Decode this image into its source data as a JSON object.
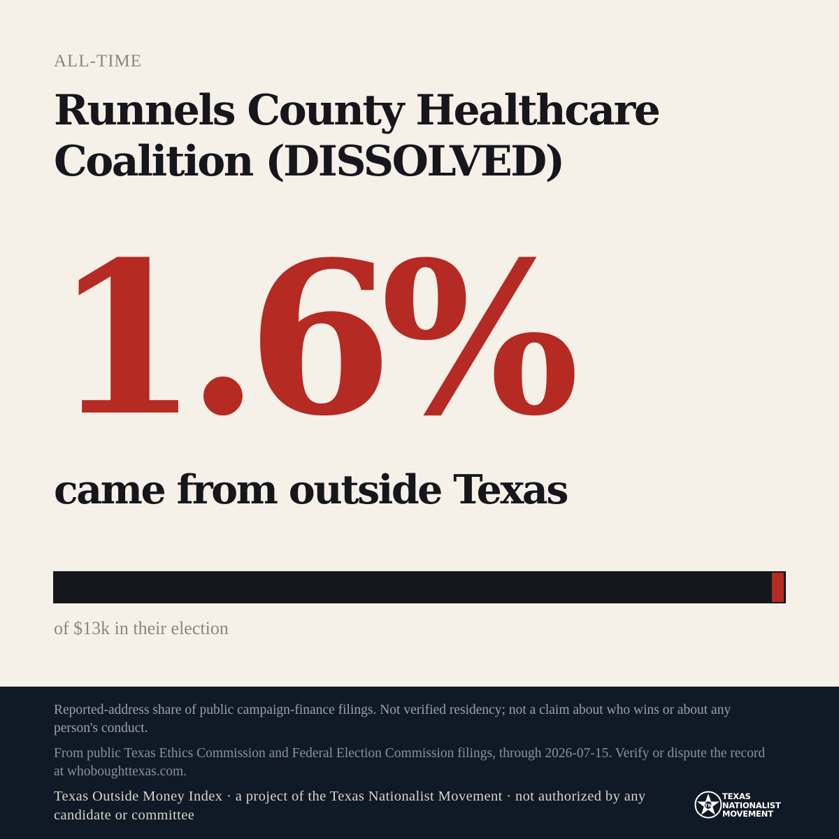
{
  "header": {
    "eyebrow": "ALL-TIME",
    "title": "Runnels County Healthcare Coalition (DISSOLVED)"
  },
  "stat": {
    "percent_display": "1.6%",
    "percent_value": 1.6,
    "caption": "came from outside Texas"
  },
  "bar": {
    "share_outside": 0.016,
    "colors": {
      "base": "#15171c",
      "fill": "#b52a22"
    },
    "subtitle": "of $13k in their election"
  },
  "footer": {
    "note1": "Reported-address share of public campaign-finance filings. Not verified residency; not a claim about who wins or about any person's conduct.",
    "note2": "From public Texas Ethics Commission and Federal Election Commission filings, through 2026-07-15. Verify or dispute the record at whoboughttexas.com.",
    "credit": "Texas Outside Money Index · a project of the Texas Nationalist Movement · not authorized by any candidate or committee",
    "logo": {
      "icon": "star-seal-icon",
      "line1": "TEXAS",
      "line2": "NATIONALIST",
      "line3": "MOVEMENT"
    }
  },
  "colors": {
    "background": "#f5f0e8",
    "accent": "#b52a22",
    "ink": "#15171c",
    "footer_bg": "#101a26"
  }
}
